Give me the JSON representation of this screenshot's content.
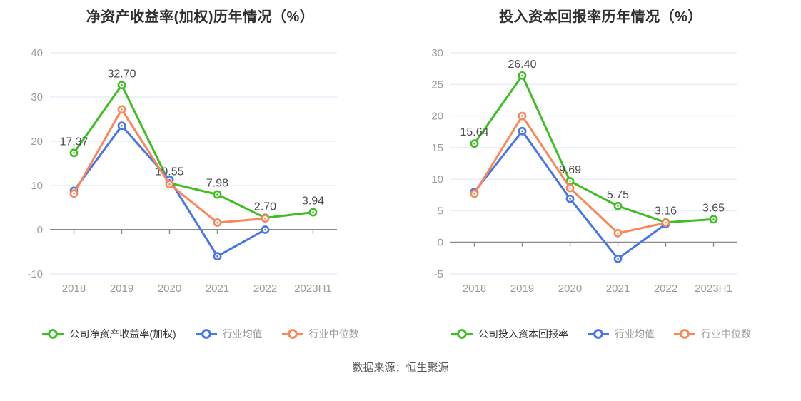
{
  "page": {
    "source_note": "数据来源：恒生聚源"
  },
  "colors": {
    "company": "#3ebe23",
    "industry_mean": "#4876e8",
    "industry_median": "#fa875a",
    "grid": "#e6edf8",
    "axis": "#8a8a8a",
    "tick_label": "#9c9c9c",
    "data_label": "#4a4a4a",
    "title": "#2f2f2f",
    "legend_primary": "#333333",
    "legend_muted": "#999999"
  },
  "chart_data": [
    {
      "type": "line",
      "title": "净资产收益率(加权)历年情况（%）",
      "categories": [
        "2018",
        "2019",
        "2020",
        "2021",
        "2022",
        "2023H1"
      ],
      "ylim": [
        -10,
        40
      ],
      "ytick_step": 10,
      "grid": true,
      "legend_position": "bottom",
      "series": [
        {
          "name": "公司净资产收益率(加权)",
          "color_key": "company",
          "show_labels": true,
          "values": [
            17.37,
            32.7,
            10.55,
            7.98,
            2.7,
            3.94
          ],
          "labels": [
            "17.37",
            "32.70",
            "10.55",
            "7.98",
            "2.70",
            "3.94"
          ]
        },
        {
          "name": "行业均值",
          "color_key": "industry_mean",
          "show_labels": false,
          "values": [
            8.8,
            23.5,
            11.3,
            -6.0,
            0.0,
            null
          ]
        },
        {
          "name": "行业中位数",
          "color_key": "industry_median",
          "show_labels": false,
          "values": [
            8.2,
            27.2,
            10.3,
            1.6,
            2.55,
            null
          ]
        }
      ]
    },
    {
      "type": "line",
      "title": "投入资本回报率历年情况（%）",
      "categories": [
        "2018",
        "2019",
        "2020",
        "2021",
        "2022",
        "2023H1"
      ],
      "ylim": [
        -5,
        30
      ],
      "ytick_step": 5,
      "grid": true,
      "legend_position": "bottom",
      "series": [
        {
          "name": "公司投入资本回报率",
          "color_key": "company",
          "show_labels": true,
          "values": [
            15.64,
            26.4,
            9.69,
            5.75,
            3.16,
            3.65
          ],
          "labels": [
            "15.64",
            "26.40",
            "9.69",
            "5.75",
            "3.16",
            "3.65"
          ]
        },
        {
          "name": "行业均值",
          "color_key": "industry_mean",
          "show_labels": false,
          "values": [
            8.0,
            17.6,
            6.9,
            -2.6,
            2.9,
            null
          ]
        },
        {
          "name": "行业中位数",
          "color_key": "industry_median",
          "show_labels": false,
          "values": [
            7.7,
            20.0,
            8.6,
            1.45,
            3.1,
            null
          ]
        }
      ]
    }
  ]
}
